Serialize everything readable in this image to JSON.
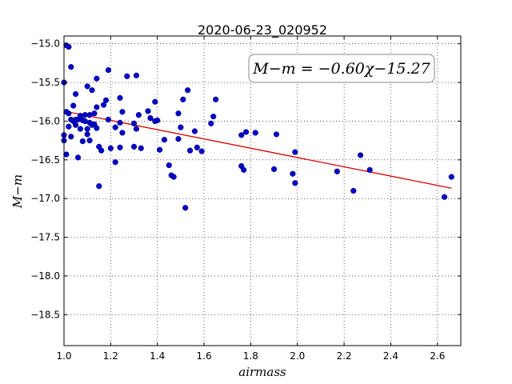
{
  "chart_data": {
    "type": "scatter",
    "title": "2020-06-23_020952",
    "xlabel": "airmass",
    "ylabel": "M−m",
    "xlim": [
      1.0,
      2.7
    ],
    "ylim": [
      -18.9,
      -14.9
    ],
    "y_inverted": true,
    "x_ticks": [
      1.0,
      1.2,
      1.4,
      1.6,
      1.8,
      2.0,
      2.2,
      2.4,
      2.6
    ],
    "x_tick_labels": [
      "1.0",
      "1.2",
      "1.4",
      "1.6",
      "1.8",
      "2.0",
      "2.2",
      "2.4",
      "2.6"
    ],
    "y_ticks": [
      -15.0,
      -15.5,
      -16.0,
      -16.5,
      -17.0,
      -17.5,
      -18.0,
      -18.5
    ],
    "y_tick_labels": [
      "−15.0",
      "−15.5",
      "−16.0",
      "−16.5",
      "−17.0",
      "−17.5",
      "−18.0",
      "−18.5"
    ],
    "grid": true,
    "annotation": "M−m = −0.60χ−15.27",
    "fit": {
      "slope": -0.6,
      "intercept": -15.27,
      "x_range": [
        1.0,
        2.66
      ]
    },
    "colors": {
      "points": "#0000cc",
      "fit_line": "#dd0000"
    },
    "points": [
      [
        1.0,
        -15.5
      ],
      [
        1.0,
        -16.18
      ],
      [
        1.0,
        -16.25
      ],
      [
        1.01,
        -15.02
      ],
      [
        1.01,
        -15.88
      ],
      [
        1.01,
        -16.43
      ],
      [
        1.02,
        -15.04
      ],
      [
        1.02,
        -15.9
      ],
      [
        1.02,
        -16.07
      ],
      [
        1.03,
        -15.3
      ],
      [
        1.03,
        -15.98
      ],
      [
        1.03,
        -16.2
      ],
      [
        1.04,
        -15.8
      ],
      [
        1.04,
        -16.0
      ],
      [
        1.05,
        -15.98
      ],
      [
        1.05,
        -16.05
      ],
      [
        1.05,
        -15.65
      ],
      [
        1.06,
        -16.47
      ],
      [
        1.06,
        -15.98
      ],
      [
        1.07,
        -15.93
      ],
      [
        1.07,
        -16.1
      ],
      [
        1.08,
        -15.99
      ],
      [
        1.08,
        -16.26
      ],
      [
        1.09,
        -16.0
      ],
      [
        1.09,
        -15.92
      ],
      [
        1.1,
        -15.55
      ],
      [
        1.1,
        -16.17
      ],
      [
        1.1,
        -16.1
      ],
      [
        1.11,
        -16.25
      ],
      [
        1.11,
        -16.02
      ],
      [
        1.11,
        -15.92
      ],
      [
        1.12,
        -15.6
      ],
      [
        1.12,
        -16.05
      ],
      [
        1.13,
        -16.04
      ],
      [
        1.13,
        -15.9
      ],
      [
        1.14,
        -15.82
      ],
      [
        1.14,
        -16.09
      ],
      [
        1.14,
        -15.45
      ],
      [
        1.15,
        -16.33
      ],
      [
        1.15,
        -16.84
      ],
      [
        1.16,
        -16.38
      ],
      [
        1.17,
        -15.79
      ],
      [
        1.18,
        -15.73
      ],
      [
        1.19,
        -15.34
      ],
      [
        1.19,
        -15.98
      ],
      [
        1.2,
        -16.35
      ],
      [
        1.22,
        -16.08
      ],
      [
        1.22,
        -16.53
      ],
      [
        1.24,
        -15.7
      ],
      [
        1.24,
        -16.34
      ],
      [
        1.24,
        -16.02
      ],
      [
        1.25,
        -15.88
      ],
      [
        1.25,
        -16.15
      ],
      [
        1.27,
        -15.42
      ],
      [
        1.3,
        -16.03
      ],
      [
        1.3,
        -16.33
      ],
      [
        1.31,
        -15.41
      ],
      [
        1.31,
        -16.1
      ],
      [
        1.32,
        -15.92
      ],
      [
        1.33,
        -16.35
      ],
      [
        1.36,
        -15.87
      ],
      [
        1.37,
        -15.96
      ],
      [
        1.39,
        -15.75
      ],
      [
        1.39,
        -16.0
      ],
      [
        1.4,
        -15.99
      ],
      [
        1.41,
        -16.37
      ],
      [
        1.43,
        -16.24
      ],
      [
        1.45,
        -16.57
      ],
      [
        1.46,
        -16.7
      ],
      [
        1.47,
        -16.72
      ],
      [
        1.49,
        -15.9
      ],
      [
        1.49,
        -16.23
      ],
      [
        1.5,
        -16.08
      ],
      [
        1.51,
        -15.72
      ],
      [
        1.52,
        -17.12
      ],
      [
        1.53,
        -15.6
      ],
      [
        1.54,
        -16.38
      ],
      [
        1.56,
        -16.13
      ],
      [
        1.57,
        -16.34
      ],
      [
        1.59,
        -16.39
      ],
      [
        1.63,
        -16.03
      ],
      [
        1.64,
        -15.94
      ],
      [
        1.65,
        -15.72
      ],
      [
        1.76,
        -16.18
      ],
      [
        1.76,
        -16.58
      ],
      [
        1.77,
        -16.63
      ],
      [
        1.78,
        -16.14
      ],
      [
        1.82,
        -16.15
      ],
      [
        1.9,
        -16.62
      ],
      [
        1.91,
        -16.17
      ],
      [
        1.98,
        -16.68
      ],
      [
        1.99,
        -16.8
      ],
      [
        1.99,
        -16.4
      ],
      [
        2.17,
        -16.65
      ],
      [
        2.24,
        -16.9
      ],
      [
        2.27,
        -16.44
      ],
      [
        2.31,
        -16.63
      ],
      [
        2.63,
        -16.98
      ],
      [
        2.66,
        -16.72
      ]
    ]
  }
}
